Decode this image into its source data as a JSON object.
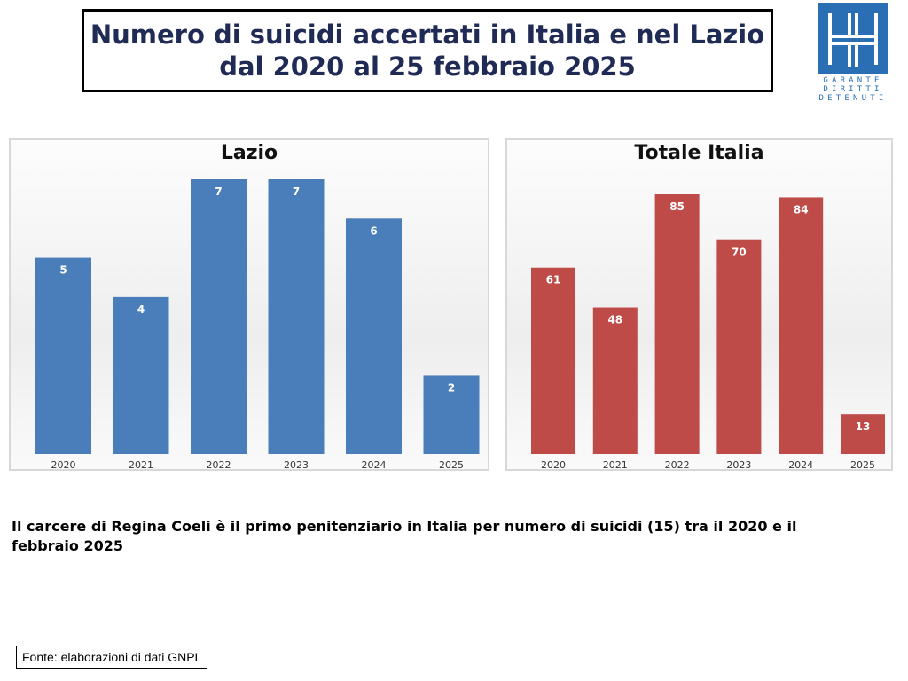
{
  "header": {
    "title_line1": "Numero di suicidi accertati in Italia e nel Lazio",
    "title_line2": "dal 2020 al 25 febbraio 2025"
  },
  "logo": {
    "lines": [
      "GARANTE",
      "DIRITTI",
      "DETENUTI"
    ]
  },
  "chart_data": [
    {
      "type": "bar",
      "title": "Lazio",
      "categories": [
        "2020",
        "2021",
        "2022",
        "2023",
        "2024",
        "2025"
      ],
      "values": [
        5,
        4,
        7,
        7,
        6,
        2
      ],
      "ylim": [
        0,
        7
      ],
      "color": "#4a7ebb",
      "grid": false
    },
    {
      "type": "bar",
      "title": "Totale Italia",
      "categories": [
        "2020",
        "2021",
        "2022",
        "2023",
        "2024",
        "2025"
      ],
      "values": [
        61,
        48,
        85,
        70,
        84,
        13
      ],
      "ylim": [
        0,
        85
      ],
      "color": "#be4b48",
      "grid": false
    }
  ],
  "note": "Il carcere di Regina Coeli è il primo penitenziario in Italia per numero di suicidi (15) tra il 2020  e il febbraio 2025",
  "source": "Fonte: elaborazioni di dati GNPL"
}
